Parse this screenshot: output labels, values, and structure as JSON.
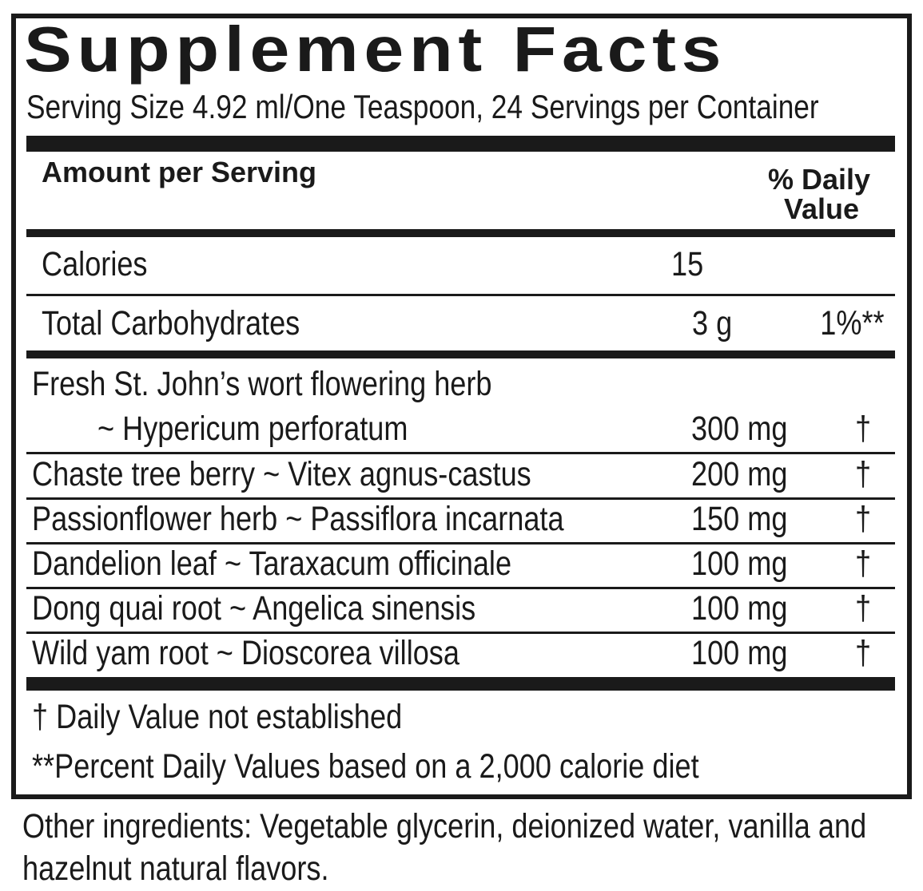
{
  "title": "Supplement Facts",
  "serving": "Serving Size 4.92 ml/One Teaspoon, 24 Servings per Container",
  "header": {
    "amount": "Amount per Serving",
    "dv_line1": "% Daily",
    "dv_line2": "Value"
  },
  "nutrients": [
    {
      "name": "Calories",
      "amount": "15",
      "dv": ""
    },
    {
      "name": "Total Carbohydrates",
      "amount": "3 g",
      "dv": "1%**"
    }
  ],
  "herbs": [
    {
      "name": "Fresh St. John’s wort flowering herb",
      "name2": "~ Hypericum perforatum",
      "amount": "300 mg",
      "dv": "†"
    },
    {
      "name": "Chaste tree berry ~ Vitex agnus-castus",
      "amount": "200 mg",
      "dv": "†"
    },
    {
      "name": "Passionflower herb ~ Passiflora incarnata",
      "amount": "150 mg",
      "dv": "†"
    },
    {
      "name": "Dandelion leaf ~ Taraxacum officinale",
      "amount": "100 mg",
      "dv": "†"
    },
    {
      "name": "Dong quai root ~ Angelica sinensis",
      "amount": "100 mg",
      "dv": "†"
    },
    {
      "name": "Wild yam root ~ Dioscorea villosa",
      "amount": "100 mg",
      "dv": "†"
    }
  ],
  "footnotes": [
    "†  Daily Value not established",
    "**Percent Daily Values based on a 2,000 calorie diet"
  ],
  "other_ingredients": [
    "Other ingredients: Vegetable glycerin, deionized water, vanilla and",
    "hazelnut natural flavors."
  ]
}
